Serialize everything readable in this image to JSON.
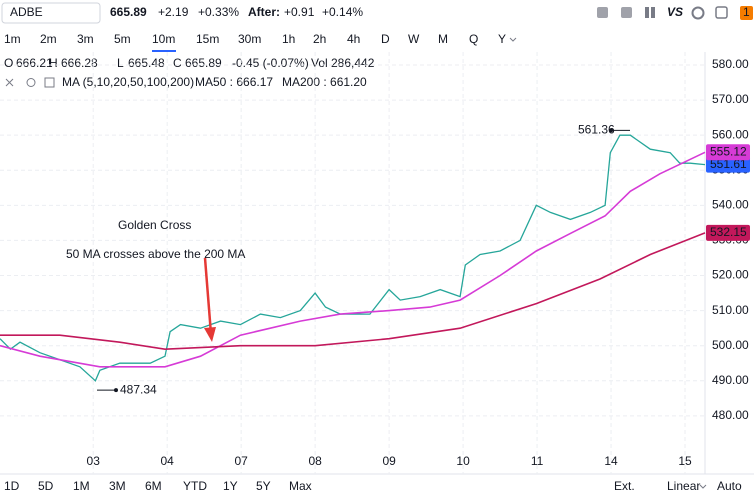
{
  "header": {
    "symbol": "ADBE",
    "price": "665.89",
    "change": "+2.19",
    "change_pct": "+0.33%",
    "after_label": "After:",
    "after_change": "+0.91",
    "after_pct": "+0.14%",
    "icon_text": "VS",
    "badge": "1"
  },
  "intervals": [
    "1m",
    "2m",
    "3m",
    "5m",
    "10m",
    "15m",
    "30m",
    "1h",
    "2h",
    "4h",
    "D",
    "W",
    "M",
    "Q",
    "Y"
  ],
  "selected_interval": "10m",
  "ohlc": {
    "o_label": "O",
    "o": "666.21",
    "h_label": "H",
    "h": "666.28",
    "l_label": "L",
    "l": "665.48",
    "c_label": "C",
    "c": "665.89",
    "change": "-0.45 (-0.07%)",
    "vol_label": "Vol",
    "vol": "286,442"
  },
  "ma_legend": {
    "name": "MA (5,10,20,50,100,200)",
    "ma50": "MA50 : 666.17",
    "ma200": "MA200 : 661.20"
  },
  "ranges": [
    "1D",
    "5D",
    "1M",
    "3M",
    "6M",
    "YTD",
    "1Y",
    "5Y",
    "Max"
  ],
  "footer": {
    "ext": "Ext.",
    "scale": "Linear",
    "auto": "Auto"
  },
  "chart_data": {
    "type": "line",
    "annotation_title": "Golden Cross",
    "annotation_text": "50 MA crosses above the 200 MA",
    "high_label": 561.36,
    "low_label": 487.34,
    "xlim": [
      -1.26,
      8.27
    ],
    "xticks": [
      {
        "value": 0,
        "label": "03"
      },
      {
        "value": 1,
        "label": "04"
      },
      {
        "value": 2,
        "label": "07"
      },
      {
        "value": 3,
        "label": "08"
      },
      {
        "value": 4,
        "label": "09"
      },
      {
        "value": 5,
        "label": "10"
      },
      {
        "value": 6,
        "label": "11"
      },
      {
        "value": 7,
        "label": "14"
      },
      {
        "value": 8,
        "label": "15"
      }
    ],
    "ylim": [
      471.7,
      583.7
    ],
    "yticks": [
      {
        "value": 480,
        "label": "480.00"
      },
      {
        "value": 490,
        "label": "490.00"
      },
      {
        "value": 500,
        "label": "500.00"
      },
      {
        "value": 510,
        "label": "510.00"
      },
      {
        "value": 520,
        "label": "520.00"
      },
      {
        "value": 530,
        "label": "530.00"
      },
      {
        "value": 540,
        "label": "540.00"
      },
      {
        "value": 550,
        "label": "550.00"
      },
      {
        "value": 560,
        "label": "560.00"
      },
      {
        "value": 570,
        "label": "570.00"
      },
      {
        "value": 580,
        "label": "580.00"
      }
    ],
    "grid": true,
    "series": [
      {
        "color": "#26a69a",
        "tag_color": "#2962ff",
        "x": [
          -1.26,
          -1.12,
          -0.99,
          -0.72,
          -0.45,
          -0.18,
          0.03,
          0.09,
          0.36,
          0.77,
          0.97,
          1.04,
          1.18,
          1.45,
          1.72,
          1.99,
          2.26,
          2.53,
          2.8,
          3.0,
          3.14,
          3.34,
          3.74,
          4.0,
          4.15,
          4.42,
          4.69,
          4.96,
          5.03,
          5.23,
          5.5,
          5.77,
          5.99,
          6.18,
          6.45,
          6.72,
          6.92,
          6.99,
          7.12,
          7.26,
          7.53,
          7.8,
          7.93,
          8.07,
          8.27
        ],
        "values": [
          502,
          499,
          501,
          498,
          496,
          494,
          490,
          493,
          495,
          495,
          497,
          504,
          506,
          505,
          507,
          506,
          509,
          508,
          510,
          515,
          511,
          509,
          509,
          516,
          513,
          514,
          516,
          514,
          523,
          526,
          527,
          530,
          540,
          538,
          536,
          538,
          540,
          555,
          560,
          560,
          556,
          555,
          552,
          552,
          551.61
        ]
      },
      {
        "color": "#d63bd6",
        "tag_color": "#d63bd6",
        "x": [
          -1.26,
          -0.72,
          0.09,
          0.97,
          1.45,
          1.99,
          2.8,
          3.34,
          4.0,
          4.55,
          4.96,
          5.5,
          5.99,
          6.45,
          6.92,
          7.26,
          7.66,
          8.27
        ],
        "values": [
          500,
          497,
          494,
          494,
          497,
          503,
          507,
          509,
          510,
          511,
          513,
          520,
          527,
          532,
          537,
          544,
          549,
          555.12
        ]
      },
      {
        "color": "#c2185b",
        "tag_color": "#c2185b",
        "x": [
          -1.26,
          -0.45,
          0.36,
          0.97,
          1.99,
          3.0,
          4.0,
          4.96,
          5.99,
          6.85,
          7.53,
          8.27
        ],
        "values": [
          503,
          503,
          501,
          499,
          500,
          500,
          502,
          505,
          512,
          519,
          526,
          532.15
        ]
      }
    ]
  }
}
